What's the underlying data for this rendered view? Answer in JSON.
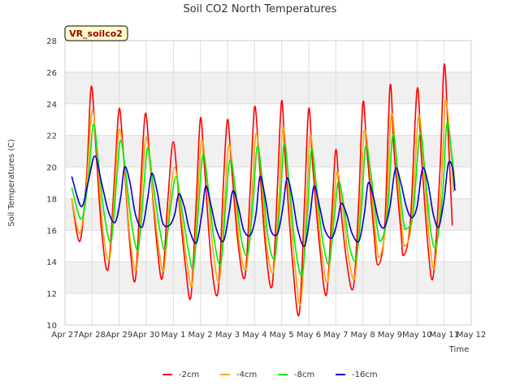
{
  "chart_data": {
    "type": "line",
    "title": "Soil CO2 North Temperatures",
    "xlabel": "Time",
    "ylabel": "Soil Temperatures (C)",
    "site_label": "VR_soilco2",
    "ylim": [
      10,
      28
    ],
    "yticks": [
      10,
      12,
      14,
      16,
      18,
      20,
      22,
      24,
      26,
      28
    ],
    "xlim": [
      0,
      15
    ],
    "xticks": [
      {
        "x": 0,
        "label": "Apr 27"
      },
      {
        "x": 1,
        "label": "Apr 28"
      },
      {
        "x": 2,
        "label": "Apr 29"
      },
      {
        "x": 3,
        "label": "Apr 30"
      },
      {
        "x": 4,
        "label": "May 1"
      },
      {
        "x": 5,
        "label": "May 2"
      },
      {
        "x": 6,
        "label": "May 3"
      },
      {
        "x": 7,
        "label": "May 4"
      },
      {
        "x": 8,
        "label": "May 5"
      },
      {
        "x": 9,
        "label": "May 6"
      },
      {
        "x": 10,
        "label": "May 7"
      },
      {
        "x": 11,
        "label": "May 8"
      },
      {
        "x": 12,
        "label": "May 9"
      },
      {
        "x": 13,
        "label": "May 10"
      },
      {
        "x": 14,
        "label": "May 11"
      },
      {
        "x": 15,
        "label": "May 12"
      }
    ],
    "grid": true,
    "legend_position": "bottom",
    "series": [
      {
        "name": "-2cm",
        "color": "#ff0000",
        "points": [
          [
            0.25,
            18.0
          ],
          [
            0.55,
            15.3
          ],
          [
            0.8,
            19.5
          ],
          [
            0.97,
            25.1
          ],
          [
            1.15,
            21.0
          ],
          [
            1.35,
            16.0
          ],
          [
            1.6,
            13.6
          ],
          [
            1.85,
            20.0
          ],
          [
            2.0,
            23.7
          ],
          [
            2.15,
            21.0
          ],
          [
            2.4,
            15.0
          ],
          [
            2.6,
            12.9
          ],
          [
            2.8,
            19.0
          ],
          [
            2.97,
            23.4
          ],
          [
            3.15,
            20.0
          ],
          [
            3.4,
            15.0
          ],
          [
            3.6,
            13.0
          ],
          [
            3.8,
            18.0
          ],
          [
            4.0,
            21.6
          ],
          [
            4.2,
            18.0
          ],
          [
            4.45,
            13.7
          ],
          [
            4.65,
            11.8
          ],
          [
            4.85,
            18.0
          ],
          [
            5.0,
            23.1
          ],
          [
            5.15,
            20.0
          ],
          [
            5.4,
            14.0
          ],
          [
            5.65,
            12.1
          ],
          [
            5.85,
            19.0
          ],
          [
            6.0,
            23.0
          ],
          [
            6.15,
            20.0
          ],
          [
            6.4,
            15.0
          ],
          [
            6.65,
            13.1
          ],
          [
            6.85,
            19.0
          ],
          [
            7.0,
            23.8
          ],
          [
            7.15,
            21.0
          ],
          [
            7.4,
            15.0
          ],
          [
            7.65,
            12.5
          ],
          [
            7.85,
            19.0
          ],
          [
            8.0,
            24.2
          ],
          [
            8.15,
            20.0
          ],
          [
            8.4,
            14.0
          ],
          [
            8.65,
            10.7
          ],
          [
            8.85,
            18.0
          ],
          [
            9.0,
            23.7
          ],
          [
            9.15,
            20.0
          ],
          [
            9.4,
            15.0
          ],
          [
            9.65,
            11.9
          ],
          [
            9.85,
            17.0
          ],
          [
            10.0,
            21.1
          ],
          [
            10.15,
            18.0
          ],
          [
            10.4,
            14.0
          ],
          [
            10.65,
            12.4
          ],
          [
            10.85,
            18.0
          ],
          [
            11.0,
            24.1
          ],
          [
            11.15,
            21.0
          ],
          [
            11.4,
            16.0
          ],
          [
            11.55,
            13.8
          ],
          [
            11.8,
            16.0
          ],
          [
            12.0,
            25.1
          ],
          [
            12.15,
            21.0
          ],
          [
            12.4,
            16.0
          ],
          [
            12.5,
            14.4
          ],
          [
            12.75,
            16.5
          ],
          [
            13.0,
            24.9
          ],
          [
            13.15,
            21.0
          ],
          [
            13.4,
            15.0
          ],
          [
            13.6,
            13.1
          ],
          [
            13.85,
            20.0
          ],
          [
            14.0,
            26.5
          ],
          [
            14.15,
            22.0
          ],
          [
            14.3,
            16.3
          ]
        ]
      },
      {
        "name": "-4cm",
        "color": "#ffa500",
        "points": [
          [
            0.25,
            18.0
          ],
          [
            0.55,
            15.8
          ],
          [
            0.8,
            19.0
          ],
          [
            1.0,
            23.6
          ],
          [
            1.2,
            20.5
          ],
          [
            1.4,
            16.0
          ],
          [
            1.65,
            14.2
          ],
          [
            1.85,
            19.0
          ],
          [
            2.0,
            22.4
          ],
          [
            2.2,
            20.0
          ],
          [
            2.4,
            15.5
          ],
          [
            2.65,
            13.6
          ],
          [
            2.85,
            19.0
          ],
          [
            3.0,
            21.9
          ],
          [
            3.2,
            19.0
          ],
          [
            3.45,
            15.0
          ],
          [
            3.65,
            13.5
          ],
          [
            3.85,
            17.5
          ],
          [
            4.05,
            20.0
          ],
          [
            4.25,
            17.5
          ],
          [
            4.5,
            14.0
          ],
          [
            4.7,
            12.6
          ],
          [
            4.9,
            18.0
          ],
          [
            5.05,
            21.7
          ],
          [
            5.25,
            19.0
          ],
          [
            5.45,
            15.0
          ],
          [
            5.7,
            12.8
          ],
          [
            5.9,
            18.0
          ],
          [
            6.05,
            21.4
          ],
          [
            6.25,
            19.0
          ],
          [
            6.45,
            15.0
          ],
          [
            6.7,
            13.6
          ],
          [
            6.9,
            18.0
          ],
          [
            7.05,
            22.1
          ],
          [
            7.25,
            19.5
          ],
          [
            7.45,
            15.0
          ],
          [
            7.7,
            13.4
          ],
          [
            7.9,
            18.0
          ],
          [
            8.05,
            22.5
          ],
          [
            8.25,
            19.0
          ],
          [
            8.45,
            14.5
          ],
          [
            8.7,
            11.3
          ],
          [
            8.9,
            17.0
          ],
          [
            9.05,
            22.0
          ],
          [
            9.25,
            19.0
          ],
          [
            9.45,
            15.0
          ],
          [
            9.7,
            12.7
          ],
          [
            9.9,
            17.0
          ],
          [
            10.05,
            19.7
          ],
          [
            10.25,
            17.5
          ],
          [
            10.45,
            14.5
          ],
          [
            10.7,
            13.0
          ],
          [
            10.9,
            17.5
          ],
          [
            11.05,
            22.3
          ],
          [
            11.25,
            20.0
          ],
          [
            11.45,
            16.0
          ],
          [
            11.6,
            14.3
          ],
          [
            11.85,
            16.5
          ],
          [
            12.05,
            23.3
          ],
          [
            12.25,
            20.0
          ],
          [
            12.45,
            16.0
          ],
          [
            12.55,
            15.0
          ],
          [
            12.8,
            16.5
          ],
          [
            13.05,
            23.2
          ],
          [
            13.25,
            20.0
          ],
          [
            13.45,
            15.5
          ],
          [
            13.65,
            13.7
          ],
          [
            13.9,
            19.0
          ],
          [
            14.05,
            24.2
          ],
          [
            14.25,
            21.0
          ],
          [
            14.35,
            18.4
          ]
        ]
      },
      {
        "name": "-8cm",
        "color": "#00ee00",
        "points": [
          [
            0.25,
            18.7
          ],
          [
            0.6,
            16.7
          ],
          [
            0.85,
            19.0
          ],
          [
            1.05,
            22.7
          ],
          [
            1.25,
            20.0
          ],
          [
            1.45,
            17.0
          ],
          [
            1.7,
            15.3
          ],
          [
            1.9,
            19.0
          ],
          [
            2.05,
            21.7
          ],
          [
            2.25,
            19.5
          ],
          [
            2.45,
            16.5
          ],
          [
            2.7,
            14.8
          ],
          [
            2.9,
            18.5
          ],
          [
            3.05,
            21.2
          ],
          [
            3.25,
            19.0
          ],
          [
            3.5,
            16.0
          ],
          [
            3.7,
            14.8
          ],
          [
            3.9,
            17.5
          ],
          [
            4.1,
            19.4
          ],
          [
            4.3,
            17.5
          ],
          [
            4.55,
            14.8
          ],
          [
            4.75,
            13.7
          ],
          [
            4.95,
            18.0
          ],
          [
            5.1,
            20.8
          ],
          [
            5.3,
            18.5
          ],
          [
            5.5,
            15.5
          ],
          [
            5.75,
            13.9
          ],
          [
            5.95,
            18.0
          ],
          [
            6.1,
            20.5
          ],
          [
            6.3,
            18.5
          ],
          [
            6.5,
            15.5
          ],
          [
            6.75,
            14.5
          ],
          [
            6.95,
            18.0
          ],
          [
            7.1,
            21.3
          ],
          [
            7.3,
            19.0
          ],
          [
            7.5,
            15.5
          ],
          [
            7.75,
            14.3
          ],
          [
            7.95,
            18.0
          ],
          [
            8.1,
            21.5
          ],
          [
            8.3,
            18.5
          ],
          [
            8.5,
            15.0
          ],
          [
            8.75,
            13.2
          ],
          [
            8.95,
            17.0
          ],
          [
            9.1,
            21.1
          ],
          [
            9.3,
            18.5
          ],
          [
            9.5,
            15.5
          ],
          [
            9.75,
            13.9
          ],
          [
            9.95,
            17.0
          ],
          [
            10.1,
            19.1
          ],
          [
            10.3,
            17.5
          ],
          [
            10.5,
            15.0
          ],
          [
            10.75,
            14.2
          ],
          [
            10.95,
            17.5
          ],
          [
            11.1,
            21.3
          ],
          [
            11.3,
            19.5
          ],
          [
            11.5,
            16.5
          ],
          [
            11.65,
            15.3
          ],
          [
            11.9,
            17.0
          ],
          [
            12.1,
            22.0
          ],
          [
            12.3,
            19.5
          ],
          [
            12.5,
            16.5
          ],
          [
            12.6,
            16.1
          ],
          [
            12.85,
            17.0
          ],
          [
            13.1,
            22.1
          ],
          [
            13.3,
            19.5
          ],
          [
            13.5,
            16.0
          ],
          [
            13.7,
            15.0
          ],
          [
            13.95,
            18.5
          ],
          [
            14.1,
            22.8
          ],
          [
            14.3,
            20.5
          ],
          [
            14.4,
            18.8
          ]
        ]
      },
      {
        "name": "-16cm",
        "color": "#0000cc",
        "points": [
          [
            0.25,
            19.4
          ],
          [
            0.6,
            17.5
          ],
          [
            0.85,
            19.0
          ],
          [
            1.1,
            20.7
          ],
          [
            1.35,
            19.0
          ],
          [
            1.6,
            17.2
          ],
          [
            1.85,
            16.5
          ],
          [
            2.05,
            18.0
          ],
          [
            2.2,
            20.0
          ],
          [
            2.4,
            19.0
          ],
          [
            2.6,
            17.0
          ],
          [
            2.85,
            16.2
          ],
          [
            3.05,
            18.0
          ],
          [
            3.2,
            19.6
          ],
          [
            3.4,
            18.5
          ],
          [
            3.6,
            16.5
          ],
          [
            3.85,
            16.3
          ],
          [
            4.05,
            17.0
          ],
          [
            4.2,
            18.3
          ],
          [
            4.4,
            17.5
          ],
          [
            4.6,
            16.0
          ],
          [
            4.85,
            15.2
          ],
          [
            5.05,
            17.0
          ],
          [
            5.2,
            18.8
          ],
          [
            5.4,
            17.5
          ],
          [
            5.6,
            16.0
          ],
          [
            5.85,
            15.3
          ],
          [
            6.05,
            17.0
          ],
          [
            6.2,
            18.5
          ],
          [
            6.4,
            17.5
          ],
          [
            6.6,
            16.0
          ],
          [
            6.85,
            15.7
          ],
          [
            7.05,
            17.0
          ],
          [
            7.2,
            19.4
          ],
          [
            7.4,
            18.0
          ],
          [
            7.6,
            16.0
          ],
          [
            7.85,
            15.8
          ],
          [
            8.05,
            17.5
          ],
          [
            8.2,
            19.3
          ],
          [
            8.4,
            18.0
          ],
          [
            8.6,
            16.0
          ],
          [
            8.85,
            15.0
          ],
          [
            9.05,
            17.0
          ],
          [
            9.2,
            18.8
          ],
          [
            9.4,
            17.5
          ],
          [
            9.6,
            16.0
          ],
          [
            9.85,
            15.5
          ],
          [
            10.05,
            16.5
          ],
          [
            10.2,
            17.7
          ],
          [
            10.4,
            17.0
          ],
          [
            10.6,
            15.8
          ],
          [
            10.85,
            15.3
          ],
          [
            11.05,
            17.0
          ],
          [
            11.2,
            19.0
          ],
          [
            11.4,
            18.0
          ],
          [
            11.6,
            16.5
          ],
          [
            11.8,
            16.2
          ],
          [
            12.0,
            17.5
          ],
          [
            12.2,
            19.9
          ],
          [
            12.4,
            19.0
          ],
          [
            12.6,
            17.5
          ],
          [
            12.8,
            16.8
          ],
          [
            13.0,
            17.5
          ],
          [
            13.2,
            19.9
          ],
          [
            13.4,
            19.0
          ],
          [
            13.6,
            17.0
          ],
          [
            13.8,
            16.2
          ],
          [
            14.0,
            18.0
          ],
          [
            14.15,
            20.2
          ],
          [
            14.3,
            20.0
          ],
          [
            14.4,
            18.5
          ]
        ]
      }
    ]
  }
}
